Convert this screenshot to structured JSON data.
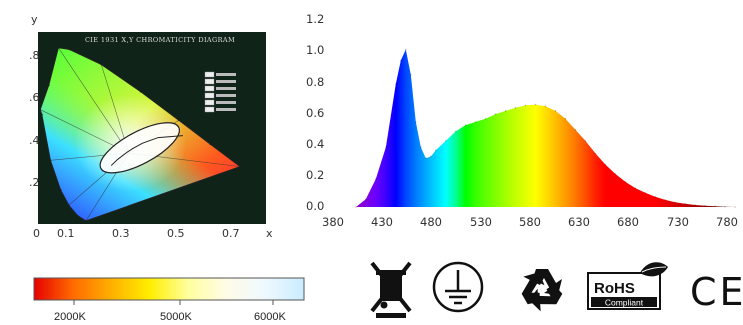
{
  "chart_data": [
    {
      "type": "scatter",
      "title": "CIE 1931 X,Y CHROMATICITY DIAGRAM",
      "xlabel": "x",
      "ylabel": "y",
      "x_ticks": [
        "0",
        "0.1",
        "0.3",
        "0.5",
        "0.7"
      ],
      "y_ticks": [
        ".8",
        ".6",
        ".4",
        ".2"
      ],
      "xlim": [
        0,
        0.8
      ],
      "ylim": [
        0,
        0.9
      ],
      "spectral_locus": [
        {
          "x": 0.174,
          "y": 0.005
        },
        {
          "x": 0.144,
          "y": 0.03
        },
        {
          "x": 0.112,
          "y": 0.08
        },
        {
          "x": 0.082,
          "y": 0.154
        },
        {
          "x": 0.045,
          "y": 0.295
        },
        {
          "x": 0.014,
          "y": 0.514
        },
        {
          "x": 0.008,
          "y": 0.538
        },
        {
          "x": 0.039,
          "y": 0.654
        },
        {
          "x": 0.074,
          "y": 0.834
        },
        {
          "x": 0.114,
          "y": 0.826
        },
        {
          "x": 0.23,
          "y": 0.754
        },
        {
          "x": 0.373,
          "y": 0.624
        },
        {
          "x": 0.512,
          "y": 0.487
        },
        {
          "x": 0.627,
          "y": 0.372
        },
        {
          "x": 0.735,
          "y": 0.265
        }
      ],
      "planckian_locus": [
        {
          "x": 0.527,
          "y": 0.413
        },
        {
          "x": 0.437,
          "y": 0.404
        },
        {
          "x": 0.38,
          "y": 0.377
        },
        {
          "x": 0.345,
          "y": 0.352
        },
        {
          "x": 0.322,
          "y": 0.332
        },
        {
          "x": 0.29,
          "y": 0.3
        },
        {
          "x": 0.266,
          "y": 0.27
        }
      ]
    },
    {
      "type": "area",
      "x_ticks": [
        "380",
        "430",
        "480",
        "530",
        "580",
        "630",
        "680",
        "730",
        "780"
      ],
      "y_ticks": [
        "0.0",
        "0.2",
        "0.4",
        "0.6",
        "0.8",
        "1.0",
        "1.2"
      ],
      "xlim": [
        380,
        780
      ],
      "ylim": [
        0,
        1.2
      ],
      "grid": false,
      "x": [
        400,
        410,
        420,
        430,
        440,
        445,
        450,
        455,
        460,
        465,
        470,
        475,
        480,
        490,
        500,
        510,
        520,
        530,
        540,
        550,
        560,
        570,
        580,
        590,
        600,
        610,
        620,
        630,
        640,
        650,
        660,
        670,
        680,
        690,
        700,
        710,
        720,
        730,
        740,
        750,
        760,
        770,
        780
      ],
      "y": [
        0.0,
        0.05,
        0.18,
        0.38,
        0.78,
        0.93,
        1.0,
        0.84,
        0.54,
        0.38,
        0.31,
        0.32,
        0.36,
        0.42,
        0.48,
        0.52,
        0.54,
        0.56,
        0.59,
        0.61,
        0.63,
        0.645,
        0.65,
        0.64,
        0.61,
        0.56,
        0.49,
        0.42,
        0.34,
        0.27,
        0.21,
        0.16,
        0.12,
        0.09,
        0.065,
        0.045,
        0.03,
        0.02,
        0.013,
        0.008,
        0.005,
        0.002,
        0.0
      ]
    },
    {
      "type": "heatmap",
      "gradient_stops": [
        "#e60000",
        "#ff6a00",
        "#ffb000",
        "#ffee00",
        "#ffff9e",
        "#fffbe8",
        "#eef9ff",
        "#c9ecff"
      ],
      "tick_labels": [
        "2000K",
        "5000K",
        "6000K"
      ]
    }
  ],
  "icons": {
    "weee": "crossed-out-wheelie-bin-icon",
    "ground": "protective-earth-ground-icon",
    "recycle": "recycle-arrows-icon",
    "rohs": "rohs-compliant-logo",
    "ce": "ce-mark-icon",
    "rohs_text": "RoHS",
    "rohs_sub": "Compliant",
    "ce_text": "CE"
  }
}
